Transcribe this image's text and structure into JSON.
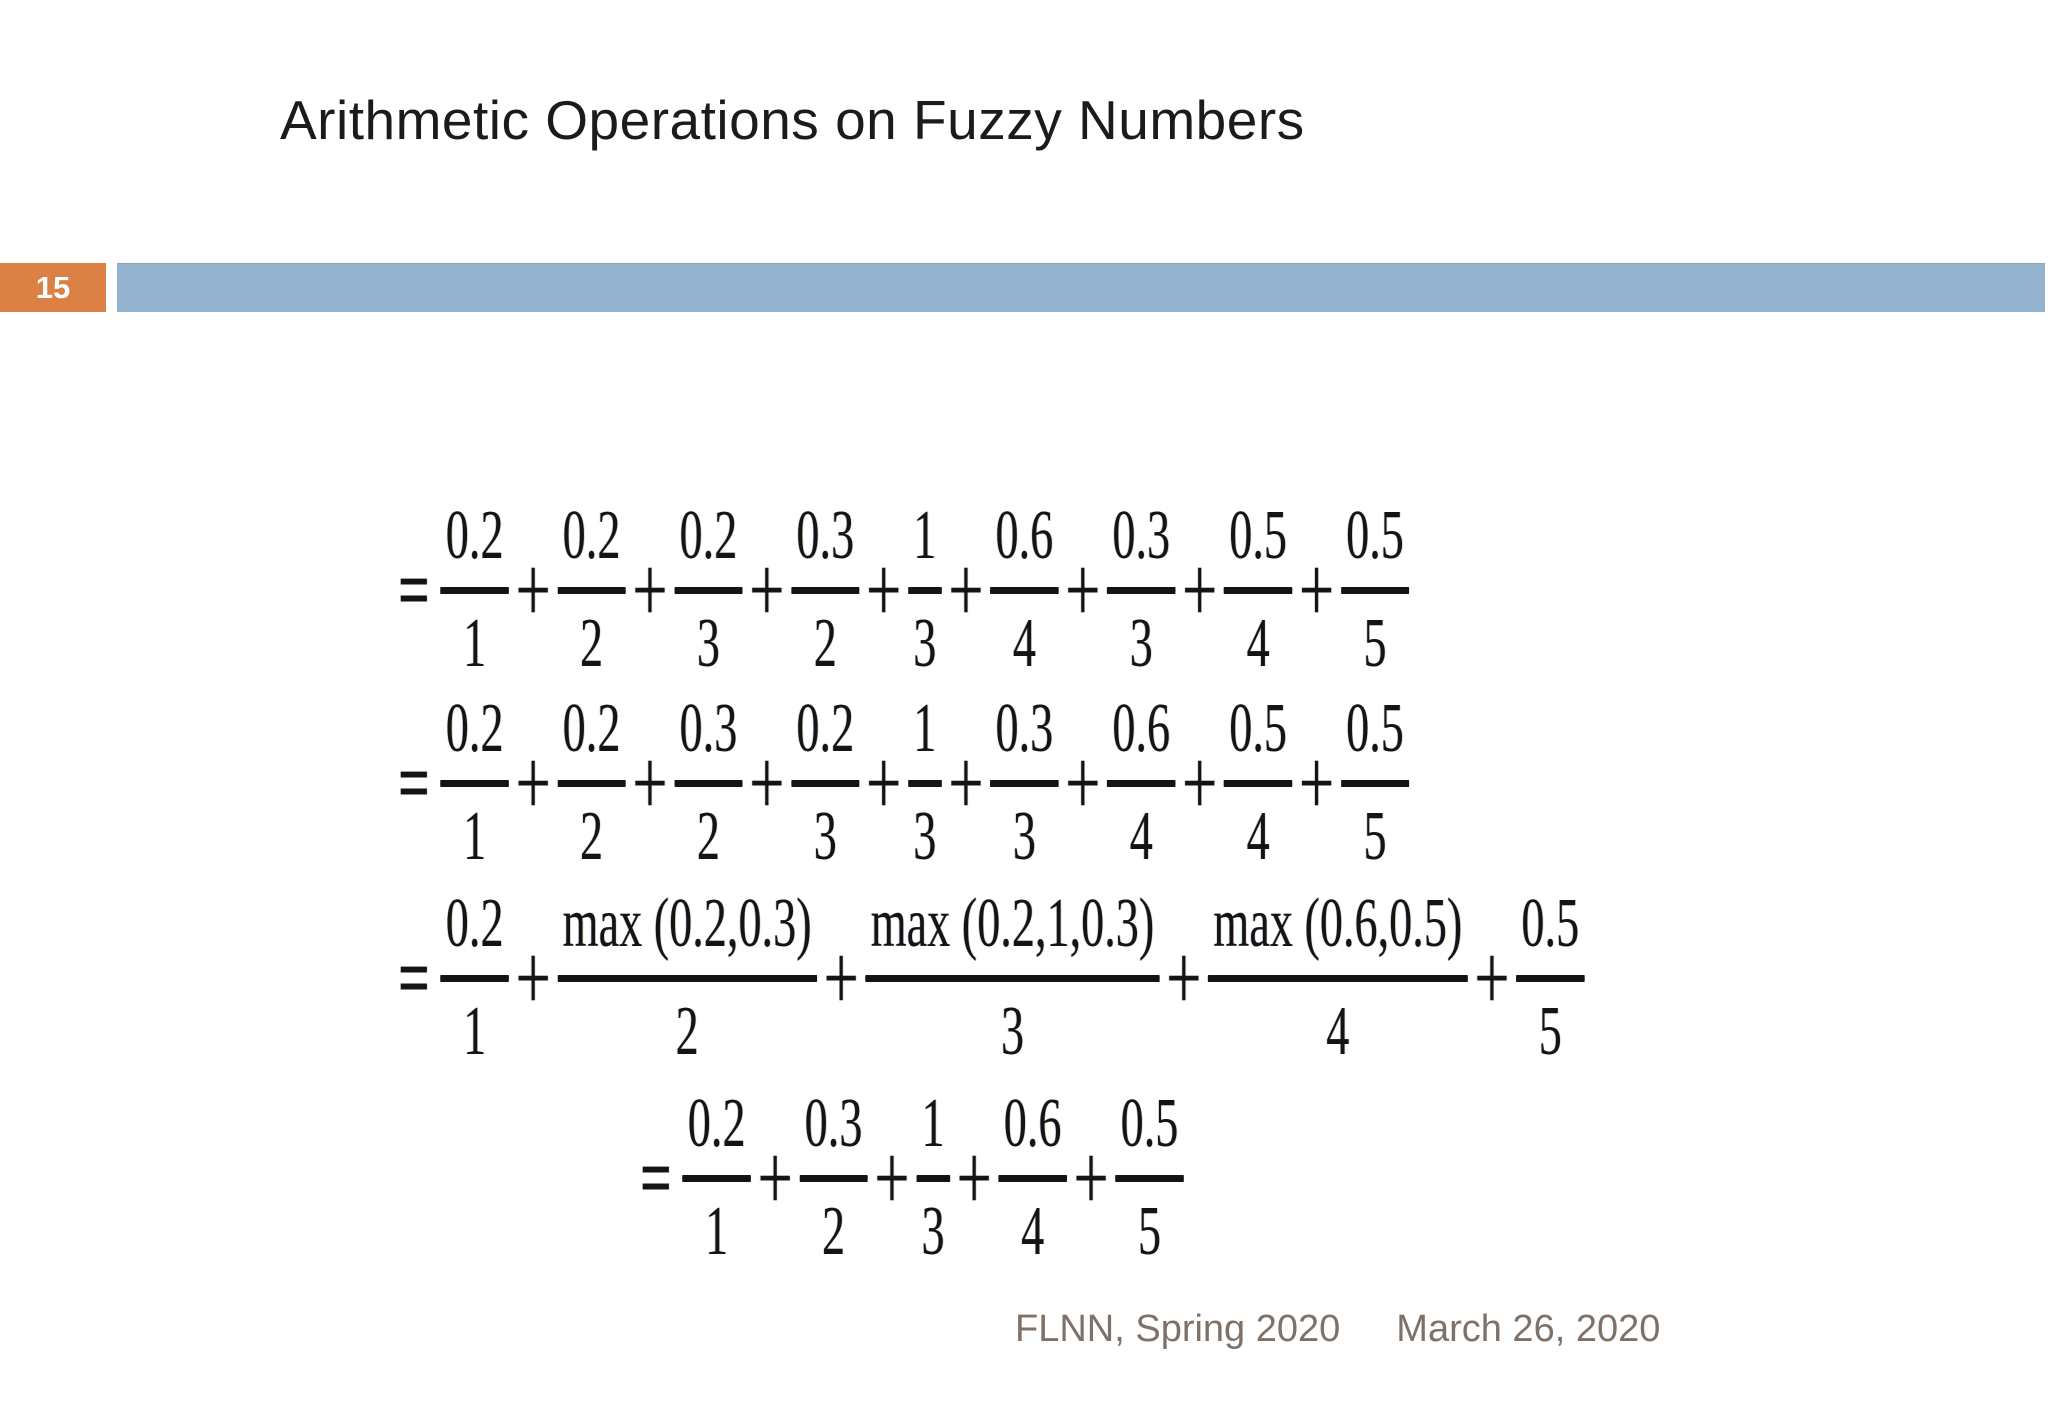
{
  "slide": {
    "title": "Arithmetic Operations on Fuzzy Numbers",
    "page_number": "15",
    "footer": {
      "course": "FLNN, Spring 2020",
      "date": "March 26, 2020"
    },
    "colors": {
      "accent_orange": "#DC8146",
      "accent_blue": "#93B3CF",
      "footer_text": "#7E7168",
      "equation_ink": "#141414"
    }
  },
  "operators": {
    "equals": "=",
    "plus": "+"
  },
  "equations": [
    {
      "terms": [
        {
          "num": "0.2",
          "den": "1"
        },
        {
          "num": "0.2",
          "den": "2"
        },
        {
          "num": "0.2",
          "den": "3"
        },
        {
          "num": "0.3",
          "den": "2"
        },
        {
          "num": "1",
          "den": "3"
        },
        {
          "num": "0.6",
          "den": "4"
        },
        {
          "num": "0.3",
          "den": "3"
        },
        {
          "num": "0.5",
          "den": "4"
        },
        {
          "num": "0.5",
          "den": "5"
        }
      ]
    },
    {
      "terms": [
        {
          "num": "0.2",
          "den": "1"
        },
        {
          "num": "0.2",
          "den": "2"
        },
        {
          "num": "0.3",
          "den": "2"
        },
        {
          "num": "0.2",
          "den": "3"
        },
        {
          "num": "1",
          "den": "3"
        },
        {
          "num": "0.3",
          "den": "3"
        },
        {
          "num": "0.6",
          "den": "4"
        },
        {
          "num": "0.5",
          "den": "4"
        },
        {
          "num": "0.5",
          "den": "5"
        }
      ]
    },
    {
      "terms": [
        {
          "num": "0.2",
          "den": "1"
        },
        {
          "num": "max (0.2,0.3)",
          "den": "2"
        },
        {
          "num": "max (0.2,1,0.3)",
          "den": "3"
        },
        {
          "num": "max (0.6,0.5)",
          "den": "4"
        },
        {
          "num": "0.5",
          "den": "5"
        }
      ]
    },
    {
      "terms": [
        {
          "num": "0.2",
          "den": "1"
        },
        {
          "num": "0.3",
          "den": "2"
        },
        {
          "num": "1",
          "den": "3"
        },
        {
          "num": "0.6",
          "den": "4"
        },
        {
          "num": "0.5",
          "den": "5"
        }
      ]
    }
  ]
}
